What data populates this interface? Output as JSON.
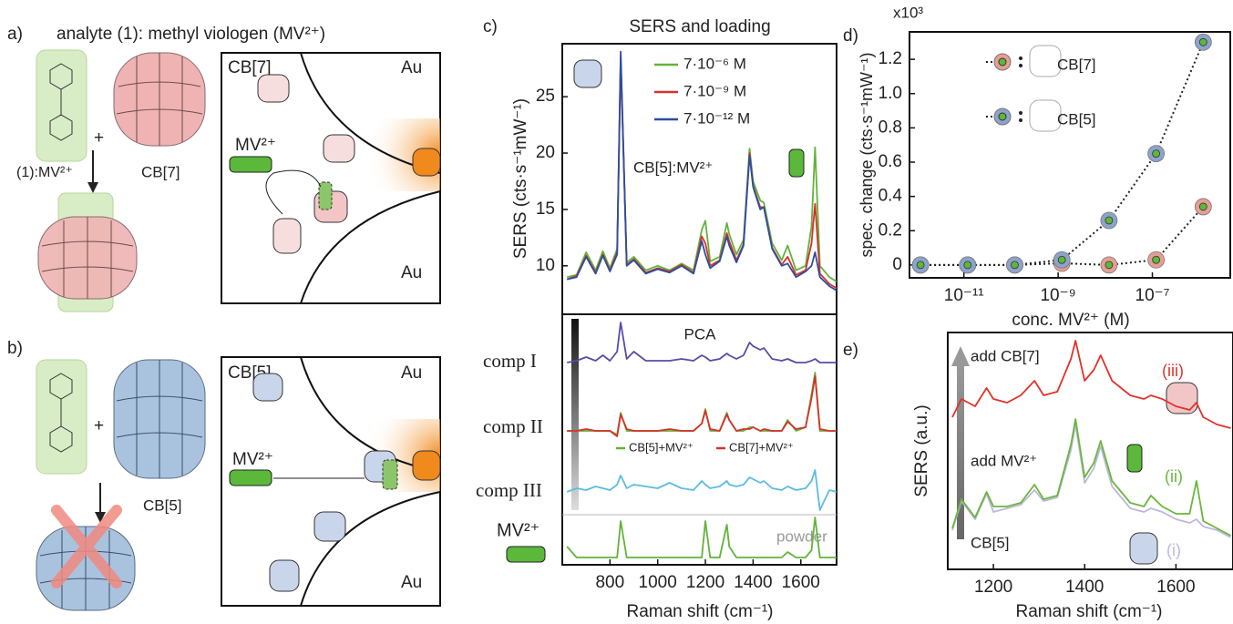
{
  "panel_a": {
    "label": "a)",
    "title": "analyte (1): methyl viologen (MV²⁺)",
    "plus": "+",
    "complex_label": "(1):MV²⁺",
    "host": "CB[7]",
    "box_title": "CB[7]",
    "au_top": "Au",
    "guest": "MV²⁺",
    "au_bottom": "Au"
  },
  "panel_b": {
    "label": "b)",
    "plus": "+",
    "host": "CB[5]",
    "box_title": "CB[5]",
    "au_top": "Au",
    "guest": "MV²⁺",
    "au_bottom": "Au"
  },
  "chart_data": [
    {
      "type": "line",
      "panel_label": "c)",
      "title": "SERS and loading",
      "ylabel": "SERS (cts·s⁻¹mW⁻¹)",
      "annotation": "CB[5]:MV²⁺",
      "x": [
        620,
        660,
        700,
        740,
        770,
        800,
        830,
        845,
        870,
        900,
        950,
        1000,
        1050,
        1100,
        1150,
        1185,
        1200,
        1220,
        1260,
        1290,
        1300,
        1330,
        1360,
        1385,
        1400,
        1430,
        1445,
        1480,
        1520,
        1545,
        1580,
        1620,
        1645,
        1660,
        1680,
        1720,
        1750
      ],
      "series": [
        {
          "name": "7·10⁻⁶ M",
          "color": "#62b33a",
          "values": [
            9,
            9.2,
            11.2,
            9.6,
            11.3,
            9.8,
            11.5,
            28,
            10.3,
            10.8,
            9.6,
            10,
            9.6,
            10.2,
            9.6,
            13.2,
            14,
            10.4,
            10.8,
            13.8,
            12.8,
            11,
            12.3,
            20.4,
            17.5,
            15.8,
            15.6,
            12,
            10.5,
            11.8,
            9.6,
            10,
            13.5,
            20.5,
            10,
            9,
            8.6
          ]
        },
        {
          "name": "7·10⁻⁹ M",
          "color": "#d6322a",
          "values": [
            8.8,
            9.1,
            10.9,
            9.4,
            11,
            9.6,
            11.2,
            28.5,
            10.1,
            10.6,
            9.4,
            9.8,
            9.5,
            10.1,
            9.4,
            12.6,
            12,
            10,
            10.5,
            12.9,
            12.2,
            10.5,
            11.9,
            20,
            17.1,
            15.2,
            15.2,
            11.6,
            10.1,
            10.8,
            9.2,
            9.6,
            12,
            15.5,
            9.3,
            8.4,
            8
          ]
        },
        {
          "name": "7·10⁻¹² M",
          "color": "#2b4ea3",
          "values": [
            8.8,
            9,
            10.8,
            9.3,
            10.9,
            9.5,
            11,
            29,
            10,
            10.5,
            9.3,
            9.7,
            9.4,
            10,
            9.3,
            12.2,
            11,
            9.8,
            10.4,
            12.6,
            11.8,
            10.3,
            11.8,
            19.8,
            17,
            15,
            15.2,
            11.5,
            10,
            10.2,
            9,
            9.5,
            10,
            11.2,
            9,
            8.2,
            7.8
          ]
        }
      ],
      "xlim": [
        600,
        1750
      ],
      "ylim": [
        5.7,
        29.7
      ],
      "yticks": [
        10,
        15,
        20,
        25
      ]
    },
    {
      "type": "line",
      "title": "PCA",
      "xlabel": "Raman shift (cm⁻¹)",
      "x": [
        620,
        660,
        700,
        740,
        770,
        800,
        830,
        845,
        870,
        900,
        950,
        1000,
        1050,
        1100,
        1150,
        1185,
        1200,
        1220,
        1260,
        1290,
        1300,
        1330,
        1360,
        1385,
        1400,
        1430,
        1445,
        1480,
        1520,
        1545,
        1580,
        1620,
        1645,
        1660,
        1680,
        1720,
        1750
      ],
      "rows": [
        {
          "label": "comp I",
          "series": [
            {
              "color": "#5b4ba6",
              "values": [
                0,
                0.05,
                0.15,
                0.05,
                0.2,
                0.05,
                0.3,
                1.1,
                0.1,
                0.3,
                0.05,
                0.05,
                0.05,
                0.1,
                0.05,
                0.2,
                0.15,
                0.05,
                0.1,
                0.25,
                0.2,
                0.1,
                0.2,
                0.55,
                0.45,
                0.35,
                0.4,
                0.1,
                0.05,
                0.1,
                0,
                0,
                0.05,
                0.1,
                0,
                0,
                0
              ]
            }
          ]
        },
        {
          "label": "comp II",
          "series": [
            {
              "name": "CB[5]+MV²⁺",
              "color": "#62b33a",
              "values": [
                0,
                0,
                0,
                0,
                0,
                0,
                -0.1,
                0.5,
                0,
                0,
                0,
                0,
                0,
                0,
                0,
                0.2,
                0.6,
                0,
                0,
                0.5,
                0.3,
                0,
                0,
                0.1,
                0.1,
                0,
                0,
                0,
                0,
                0.3,
                0,
                0.1,
                1,
                1.6,
                0,
                0,
                0
              ]
            },
            {
              "name": "CB[7]+MV²⁺",
              "color": "#d6322a",
              "values": [
                0,
                0,
                0.05,
                0,
                0,
                0,
                -0.15,
                0.45,
                0.05,
                0,
                0,
                0,
                0.05,
                0,
                0,
                0.2,
                0.55,
                0.05,
                0,
                0.45,
                0.3,
                0,
                0.05,
                0.05,
                0.1,
                0,
                0.05,
                0,
                0,
                0.25,
                0.05,
                0.1,
                0.9,
                1.5,
                0.05,
                0,
                0
              ]
            }
          ]
        },
        {
          "label": "comp III",
          "series": [
            {
              "color": "#5bbde0",
              "values": [
                0,
                0.1,
                0.05,
                0.15,
                0.1,
                0.05,
                0.2,
                0.45,
                0.1,
                0.2,
                0.15,
                0.1,
                0.25,
                0.1,
                0.05,
                0.3,
                0.2,
                0.1,
                0.15,
                0.3,
                0.2,
                0.15,
                0.2,
                0.4,
                0.35,
                0.25,
                0.3,
                0.1,
                0.05,
                0.15,
                0.05,
                0.1,
                0.3,
                0.6,
                -0.5,
                0.05,
                0
              ]
            }
          ]
        },
        {
          "label": "MV²⁺",
          "note": "powder",
          "series": [
            {
              "color": "#62b33a",
              "values": [
                0.3,
                0,
                0,
                0,
                0,
                0,
                0,
                1,
                0,
                0,
                0,
                0,
                0,
                0,
                0,
                0,
                1,
                0,
                0,
                0.9,
                0.3,
                0,
                0,
                0,
                0,
                0,
                0,
                0,
                0,
                0.15,
                0,
                0,
                0.2,
                1.1,
                0,
                0,
                0
              ]
            }
          ]
        }
      ],
      "xlim": [
        600,
        1750
      ],
      "xticks": [
        800,
        1000,
        1200,
        1400,
        1600
      ]
    },
    {
      "type": "scatter",
      "panel_label": "d)",
      "multiplier": "x10³",
      "ylabel": "spec. change (cts·s⁻¹mW⁻¹)",
      "xlabel": "conc. MV²⁺ (M)",
      "log_x": true,
      "point_color": "#5cb83a",
      "x": [
        1.2e-12,
        1.2e-11,
        1.2e-10,
        1.2e-09,
        1.2e-08,
        1.2e-07,
        1.2e-06
      ],
      "series": [
        {
          "name": "CB[7]",
          "color": "#e79d95",
          "values": [
            0,
            0,
            0,
            0.01,
            0,
            0.03,
            0.34
          ]
        },
        {
          "name": "CB[5]",
          "color": "#8ea2cc",
          "values": [
            0,
            0,
            0,
            0.03,
            0.26,
            0.65,
            1.3
          ]
        }
      ],
      "xlim": [
        7e-13,
        4.5e-06
      ],
      "ylim": [
        -0.075,
        1.36
      ],
      "xticks": [
        {
          "value": 1e-11,
          "label": "10⁻¹¹"
        },
        {
          "value": 1e-09,
          "label": "10⁻⁹"
        },
        {
          "value": 1e-07,
          "label": "10⁻⁷"
        }
      ],
      "yticks": [
        0,
        0.2,
        0.4,
        0.6,
        0.8,
        {
          "value": 1,
          "label": "1.0"
        },
        1.2
      ]
    },
    {
      "type": "line",
      "panel_label": "e)",
      "ylabel": "SERS (a.u.)",
      "xlabel": "Raman shift (cm⁻¹)",
      "x": [
        1110,
        1130,
        1160,
        1185,
        1200,
        1230,
        1260,
        1290,
        1310,
        1340,
        1370,
        1380,
        1400,
        1420,
        1435,
        1460,
        1500,
        1530,
        1545,
        1570,
        1600,
        1630,
        1645,
        1660,
        1690,
        1720
      ],
      "series": [
        {
          "name": "CB[5]",
          "tag": "(i)",
          "color": "#bbb8dc",
          "values": [
            0.2,
            1,
            0.5,
            1.2,
            0.7,
            0.8,
            0.9,
            1.3,
            1,
            1.1,
            2.4,
            3.1,
            1.5,
            1.9,
            2.5,
            1.4,
            0.8,
            0.7,
            0.8,
            0.7,
            0.5,
            0.4,
            0.5,
            0.3,
            0.2,
            0
          ]
        },
        {
          "name": "add MV²⁺",
          "tag": "(ii)",
          "color": "#6ab63c",
          "values": [
            0.2,
            1,
            0.5,
            1.2,
            0.8,
            0.8,
            0.9,
            1.4,
            1,
            1.1,
            2.5,
            3.2,
            1.6,
            2,
            2.6,
            1.5,
            0.9,
            0.8,
            1.1,
            0.8,
            0.6,
            0.6,
            1.5,
            0.4,
            0.2,
            0
          ]
        },
        {
          "name": "add CB[7]",
          "tag": "(iii)",
          "color": "#e0332a",
          "values": [
            0.3,
            0.8,
            0.6,
            1.1,
            0.8,
            0.7,
            0.9,
            1.3,
            0.9,
            1,
            1.9,
            2.4,
            1.3,
            1.6,
            2,
            1.3,
            0.9,
            0.8,
            0.9,
            0.8,
            0.6,
            0.5,
            0.7,
            0.3,
            0.1,
            0
          ]
        }
      ],
      "xlim": [
        1100,
        1725
      ],
      "xticks": [
        1200,
        1400,
        1600
      ]
    }
  ]
}
